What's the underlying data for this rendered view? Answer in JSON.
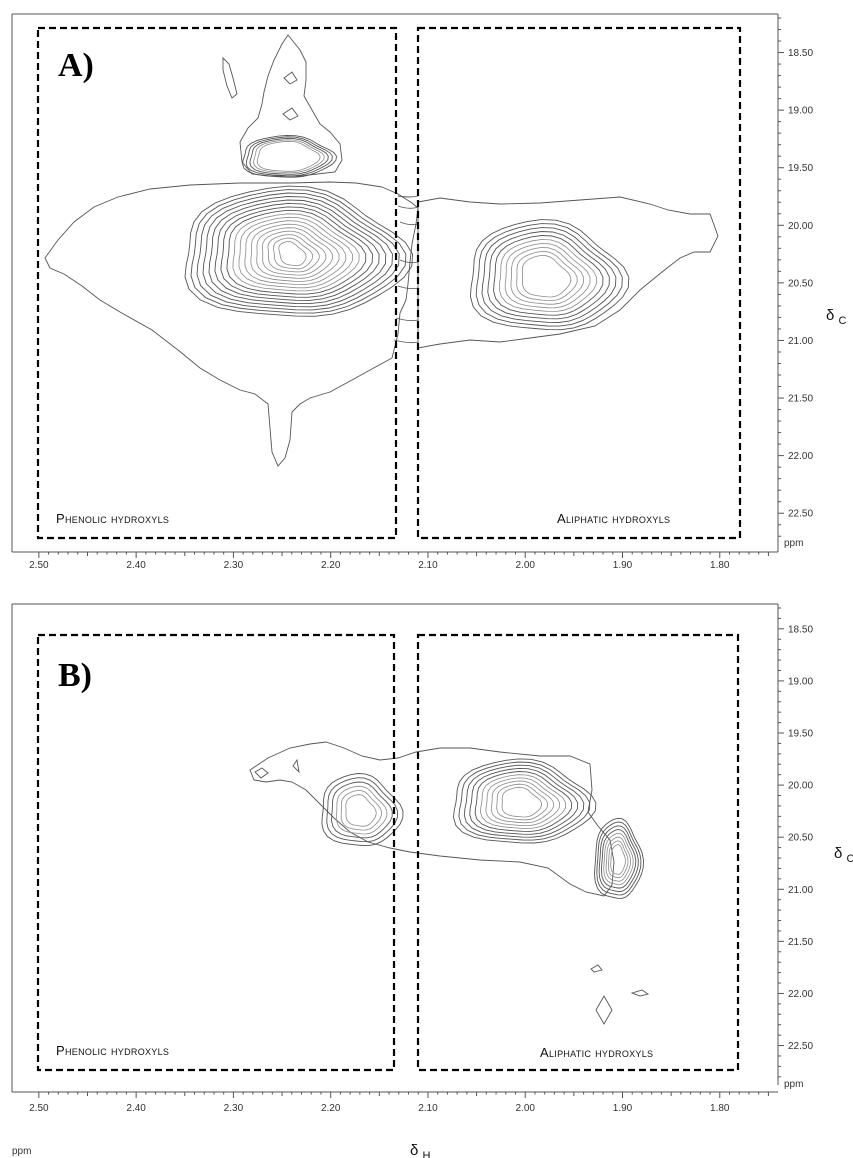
{
  "chart_data": [
    {
      "type": "contour",
      "panel_label": "A)",
      "xlabel": "",
      "ylabel": "δC",
      "y_unit_label": "ppm",
      "x_ticks": [
        "2.50",
        "2.40",
        "2.30",
        "2.20",
        "2.10",
        "2.00",
        "1.90",
        "1.80"
      ],
      "y_ticks": [
        "18.50",
        "19.00",
        "19.50",
        "20.00",
        "20.50",
        "21.00",
        "21.50",
        "22.00",
        "22.50"
      ],
      "xlim": [
        2.505,
        1.735
      ],
      "ylim": [
        18.2,
        22.75
      ],
      "x_reversed": true,
      "regions": [
        {
          "label": "Phenolic hydroxyls",
          "x_range": [
            2.49,
            2.12
          ],
          "y_range": [
            18.3,
            22.65
          ]
        },
        {
          "label": "Aliphatic hydroxyls",
          "x_range": [
            2.097,
            1.758
          ],
          "y_range": [
            18.3,
            22.65
          ]
        }
      ],
      "peaks": [
        {
          "region": "Phenolic hydroxyls",
          "x": 2.24,
          "y": 20.25,
          "levels": 17
        },
        {
          "region": "Phenolic hydroxyls",
          "x": 2.245,
          "y": 19.4,
          "levels": 5
        },
        {
          "region": "Aliphatic hydroxyls",
          "x": 1.98,
          "y": 20.45,
          "levels": 10
        }
      ]
    },
    {
      "type": "contour",
      "panel_label": "B)",
      "xlabel": "δH",
      "x_unit_label": "ppm",
      "ylabel": "δC",
      "y_unit_label": "ppm",
      "x_ticks": [
        "2.50",
        "2.40",
        "2.30",
        "2.20",
        "2.10",
        "2.00",
        "1.90",
        "1.80"
      ],
      "y_ticks": [
        "18.50",
        "19.00",
        "19.50",
        "20.00",
        "20.50",
        "21.00",
        "21.50",
        "22.00",
        "22.50"
      ],
      "xlim": [
        2.505,
        1.735
      ],
      "ylim": [
        18.3,
        22.85
      ],
      "x_reversed": true,
      "regions": [
        {
          "label": "Phenolic hydroxyls",
          "x_range": [
            2.49,
            2.115
          ],
          "y_range": [
            18.7,
            22.7
          ]
        },
        {
          "label": "Aliphatic hydroxyls",
          "x_range": [
            2.09,
            1.755
          ],
          "y_range": [
            18.7,
            22.7
          ]
        }
      ],
      "peaks": [
        {
          "region": "Aliphatic hydroxyls",
          "x": 2.005,
          "y": 20.17,
          "levels": 10
        },
        {
          "region": "Aliphatic hydroxyls",
          "x": 1.905,
          "y": 20.72,
          "levels": 8
        },
        {
          "region": "Phenolic hydroxyls",
          "x": 2.17,
          "y": 20.25,
          "levels": 6
        }
      ]
    }
  ]
}
